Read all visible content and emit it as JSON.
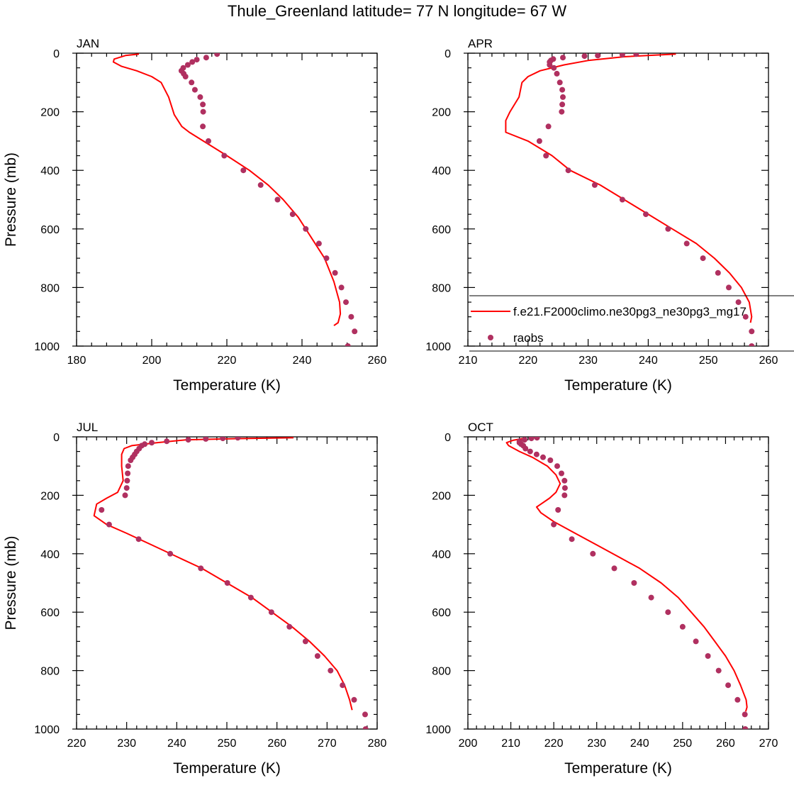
{
  "title": "Thule_Greenland  latitude= 77 N longitude= 67 W",
  "colors": {
    "model": "#ff0000",
    "obs": "#b03060"
  },
  "legend": {
    "panel": 1,
    "entries": [
      {
        "label": "f.e21.F2000climo.ne30pg3_ne30pg3_mg17",
        "kind": "line"
      },
      {
        "label": "raobs",
        "kind": "marker"
      }
    ]
  },
  "chart_data": [
    {
      "type": "line",
      "panel_label": "JAN",
      "xlabel": "Temperature (K)",
      "ylabel": "Pressure (mb)",
      "xlim": [
        180,
        260
      ],
      "ylim": [
        0,
        1000
      ],
      "y_inverted": true,
      "x_ticks": [
        180,
        200,
        220,
        240,
        260
      ],
      "y_ticks": [
        0,
        200,
        400,
        600,
        800,
        1000
      ],
      "series": [
        {
          "name": "f.e21.F2000climo.ne30pg3_ne30pg3_mg17",
          "style": "line",
          "points": [
            [
              196.6,
              3
            ],
            [
              193.0,
              8
            ],
            [
              190.0,
              20
            ],
            [
              189.8,
              30
            ],
            [
              192.0,
              45
            ],
            [
              196.0,
              60
            ],
            [
              200.0,
              80
            ],
            [
              202.5,
              100
            ],
            [
              204.5,
              150
            ],
            [
              206.0,
              210
            ],
            [
              208.0,
              250
            ],
            [
              210.0,
              270
            ],
            [
              215.0,
              310
            ],
            [
              220.0,
              350
            ],
            [
              226.0,
              400
            ],
            [
              231.0,
              450
            ],
            [
              235.0,
              500
            ],
            [
              239.0,
              560
            ],
            [
              243.0,
              640
            ],
            [
              246.0,
              700
            ],
            [
              248.5,
              780
            ],
            [
              250.0,
              850
            ],
            [
              250.2,
              890
            ],
            [
              249.6,
              920
            ],
            [
              248.5,
              930
            ]
          ]
        },
        {
          "name": "raobs",
          "style": "markers",
          "points": [
            [
              217.4,
              3
            ],
            [
              214.5,
              15
            ],
            [
              212.0,
              22
            ],
            [
              210.8,
              30
            ],
            [
              209.6,
              40
            ],
            [
              208.4,
              50
            ],
            [
              207.9,
              60
            ],
            [
              208.5,
              70
            ],
            [
              209.0,
              80
            ],
            [
              210.6,
              100
            ],
            [
              211.5,
              125
            ],
            [
              212.9,
              150
            ],
            [
              213.6,
              175
            ],
            [
              213.7,
              200
            ],
            [
              213.6,
              250
            ],
            [
              215.1,
              300
            ],
            [
              219.3,
              350
            ],
            [
              224.4,
              400
            ],
            [
              229.0,
              450
            ],
            [
              233.5,
              500
            ],
            [
              237.5,
              550
            ],
            [
              241.0,
              600
            ],
            [
              244.5,
              650
            ],
            [
              246.5,
              700
            ],
            [
              248.8,
              750
            ],
            [
              250.5,
              800
            ],
            [
              251.7,
              850
            ],
            [
              253.1,
              900
            ],
            [
              254.0,
              950
            ],
            [
              252.2,
              1000
            ]
          ]
        }
      ]
    },
    {
      "type": "line",
      "panel_label": "APR",
      "xlabel": "Temperature (K)",
      "ylabel": "",
      "xlim": [
        210,
        260
      ],
      "ylim": [
        0,
        1000
      ],
      "y_inverted": true,
      "x_ticks": [
        210,
        220,
        230,
        240,
        250,
        260
      ],
      "y_ticks": [
        0,
        200,
        400,
        600,
        800,
        1000
      ],
      "series": [
        {
          "name": "f.e21.F2000climo.ne30pg3_ne30pg3_mg17",
          "style": "line",
          "points": [
            [
              244.6,
              3
            ],
            [
              236.0,
              12
            ],
            [
              230.0,
              25
            ],
            [
              226.0,
              40
            ],
            [
              222.0,
              60
            ],
            [
              220.0,
              80
            ],
            [
              219.0,
              100
            ],
            [
              218.5,
              150
            ],
            [
              217.0,
              200
            ],
            [
              216.3,
              230
            ],
            [
              216.3,
              270
            ],
            [
              220.0,
              300
            ],
            [
              224.0,
              350
            ],
            [
              227.0,
              400
            ],
            [
              232.0,
              450
            ],
            [
              236.0,
              500
            ],
            [
              240.0,
              550
            ],
            [
              244.0,
              600
            ],
            [
              248.0,
              650
            ],
            [
              251.0,
              700
            ],
            [
              253.5,
              750
            ],
            [
              255.5,
              800
            ],
            [
              256.8,
              850
            ],
            [
              257.2,
              900
            ],
            [
              257.0,
              920
            ]
          ]
        },
        {
          "name": "raobs",
          "style": "markers",
          "points": [
            [
              238.0,
              3
            ],
            [
              235.7,
              5
            ],
            [
              231.6,
              8
            ],
            [
              229.4,
              10
            ],
            [
              225.8,
              15
            ],
            [
              224.2,
              20
            ],
            [
              223.8,
              25
            ],
            [
              223.6,
              30
            ],
            [
              223.6,
              40
            ],
            [
              224.3,
              50
            ],
            [
              224.8,
              70
            ],
            [
              225.3,
              100
            ],
            [
              225.7,
              125
            ],
            [
              225.8,
              150
            ],
            [
              225.7,
              175
            ],
            [
              225.6,
              200
            ],
            [
              223.4,
              250
            ],
            [
              221.9,
              300
            ],
            [
              223.0,
              350
            ],
            [
              226.7,
              400
            ],
            [
              231.1,
              450
            ],
            [
              235.7,
              500
            ],
            [
              239.6,
              550
            ],
            [
              243.3,
              600
            ],
            [
              246.4,
              650
            ],
            [
              249.1,
              700
            ],
            [
              251.6,
              750
            ],
            [
              253.4,
              800
            ],
            [
              255.0,
              850
            ],
            [
              256.2,
              900
            ],
            [
              257.2,
              950
            ],
            [
              257.2,
              1000
            ]
          ]
        }
      ]
    },
    {
      "type": "line",
      "panel_label": "JUL",
      "xlabel": "Temperature (K)",
      "ylabel": "Pressure (mb)",
      "xlim": [
        220,
        280
      ],
      "ylim": [
        0,
        1000
      ],
      "y_inverted": true,
      "x_ticks": [
        220,
        230,
        240,
        250,
        260,
        270,
        280
      ],
      "y_ticks": [
        0,
        200,
        400,
        600,
        800,
        1000
      ],
      "series": [
        {
          "name": "f.e21.F2000climo.ne30pg3_ne30pg3_mg17",
          "style": "line",
          "points": [
            [
              263.3,
              3
            ],
            [
              252.0,
              6
            ],
            [
              242.0,
              10
            ],
            [
              236.0,
              20
            ],
            [
              231.0,
              30
            ],
            [
              229.5,
              40
            ],
            [
              229.0,
              60
            ],
            [
              229.0,
              100
            ],
            [
              229.3,
              150
            ],
            [
              228.2,
              190
            ],
            [
              226.0,
              210
            ],
            [
              224.0,
              230
            ],
            [
              223.5,
              270
            ],
            [
              226.0,
              300
            ],
            [
              230.0,
              330
            ],
            [
              235.0,
              370
            ],
            [
              240.0,
              410
            ],
            [
              245.0,
              450
            ],
            [
              250.0,
              500
            ],
            [
              255.0,
              550
            ],
            [
              259.0,
              600
            ],
            [
              263.0,
              650
            ],
            [
              266.5,
              700
            ],
            [
              269.5,
              750
            ],
            [
              272.0,
              800
            ],
            [
              273.5,
              850
            ],
            [
              274.5,
              900
            ],
            [
              275.0,
              935
            ]
          ]
        },
        {
          "name": "raobs",
          "style": "markers",
          "points": [
            [
              252.2,
              3
            ],
            [
              249.2,
              5
            ],
            [
              245.8,
              7
            ],
            [
              242.3,
              10
            ],
            [
              238.0,
              15
            ],
            [
              235.0,
              20
            ],
            [
              233.6,
              25
            ],
            [
              233.0,
              30
            ],
            [
              232.5,
              40
            ],
            [
              232.0,
              50
            ],
            [
              231.6,
              60
            ],
            [
              231.2,
              70
            ],
            [
              230.8,
              80
            ],
            [
              230.3,
              100
            ],
            [
              230.2,
              125
            ],
            [
              230.1,
              150
            ],
            [
              230.0,
              175
            ],
            [
              229.7,
              200
            ],
            [
              225.0,
              250
            ],
            [
              226.5,
              300
            ],
            [
              232.4,
              350
            ],
            [
              238.7,
              400
            ],
            [
              244.8,
              450
            ],
            [
              250.1,
              500
            ],
            [
              254.8,
              550
            ],
            [
              258.9,
              600
            ],
            [
              262.5,
              650
            ],
            [
              265.7,
              700
            ],
            [
              268.1,
              750
            ],
            [
              270.7,
              800
            ],
            [
              273.1,
              850
            ],
            [
              275.4,
              900
            ],
            [
              277.6,
              950
            ],
            [
              277.7,
              1000
            ]
          ]
        }
      ]
    },
    {
      "type": "line",
      "panel_label": "OCT",
      "xlabel": "Temperature (K)",
      "ylabel": "",
      "xlim": [
        200,
        270
      ],
      "ylim": [
        0,
        1000
      ],
      "y_inverted": true,
      "x_ticks": [
        200,
        210,
        220,
        230,
        240,
        250,
        260,
        270
      ],
      "y_ticks": [
        0,
        200,
        400,
        600,
        800,
        1000
      ],
      "series": [
        {
          "name": "f.e21.F2000climo.ne30pg3_ne30pg3_mg17",
          "style": "line",
          "points": [
            [
              213.0,
              5
            ],
            [
              210.5,
              12
            ],
            [
              209.0,
              20
            ],
            [
              209.5,
              30
            ],
            [
              212.0,
              50
            ],
            [
              215.0,
              70
            ],
            [
              218.5,
              100
            ],
            [
              220.5,
              130
            ],
            [
              221.5,
              160
            ],
            [
              220.5,
              190
            ],
            [
              219.0,
              210
            ],
            [
              217.0,
              230
            ],
            [
              216.0,
              240
            ],
            [
              217.0,
              260
            ],
            [
              220.0,
              290
            ],
            [
              225.0,
              330
            ],
            [
              230.0,
              370
            ],
            [
              235.0,
              410
            ],
            [
              240.0,
              450
            ],
            [
              245.0,
              500
            ],
            [
              249.0,
              550
            ],
            [
              252.0,
              600
            ],
            [
              255.0,
              650
            ],
            [
              257.5,
              700
            ],
            [
              260.0,
              750
            ],
            [
              262.0,
              800
            ],
            [
              263.5,
              850
            ],
            [
              264.8,
              900
            ],
            [
              265.0,
              925
            ],
            [
              264.7,
              940
            ]
          ]
        },
        {
          "name": "raobs",
          "style": "markers",
          "points": [
            [
              216.1,
              3
            ],
            [
              214.8,
              5
            ],
            [
              213.2,
              10
            ],
            [
              212.0,
              15
            ],
            [
              212.0,
              20
            ],
            [
              212.4,
              25
            ],
            [
              212.9,
              30
            ],
            [
              213.4,
              40
            ],
            [
              214.5,
              50
            ],
            [
              216.0,
              60
            ],
            [
              217.5,
              70
            ],
            [
              219.2,
              80
            ],
            [
              220.8,
              100
            ],
            [
              221.8,
              125
            ],
            [
              222.5,
              150
            ],
            [
              222.6,
              175
            ],
            [
              222.5,
              200
            ],
            [
              221.0,
              250
            ],
            [
              220.0,
              300
            ],
            [
              224.2,
              350
            ],
            [
              229.1,
              400
            ],
            [
              234.1,
              450
            ],
            [
              238.7,
              500
            ],
            [
              242.7,
              550
            ],
            [
              246.6,
              600
            ],
            [
              250.0,
              650
            ],
            [
              253.1,
              700
            ],
            [
              255.9,
              750
            ],
            [
              258.4,
              800
            ],
            [
              260.6,
              850
            ],
            [
              262.8,
              900
            ],
            [
              264.5,
              950
            ],
            [
              264.6,
              1000
            ]
          ]
        }
      ]
    }
  ]
}
